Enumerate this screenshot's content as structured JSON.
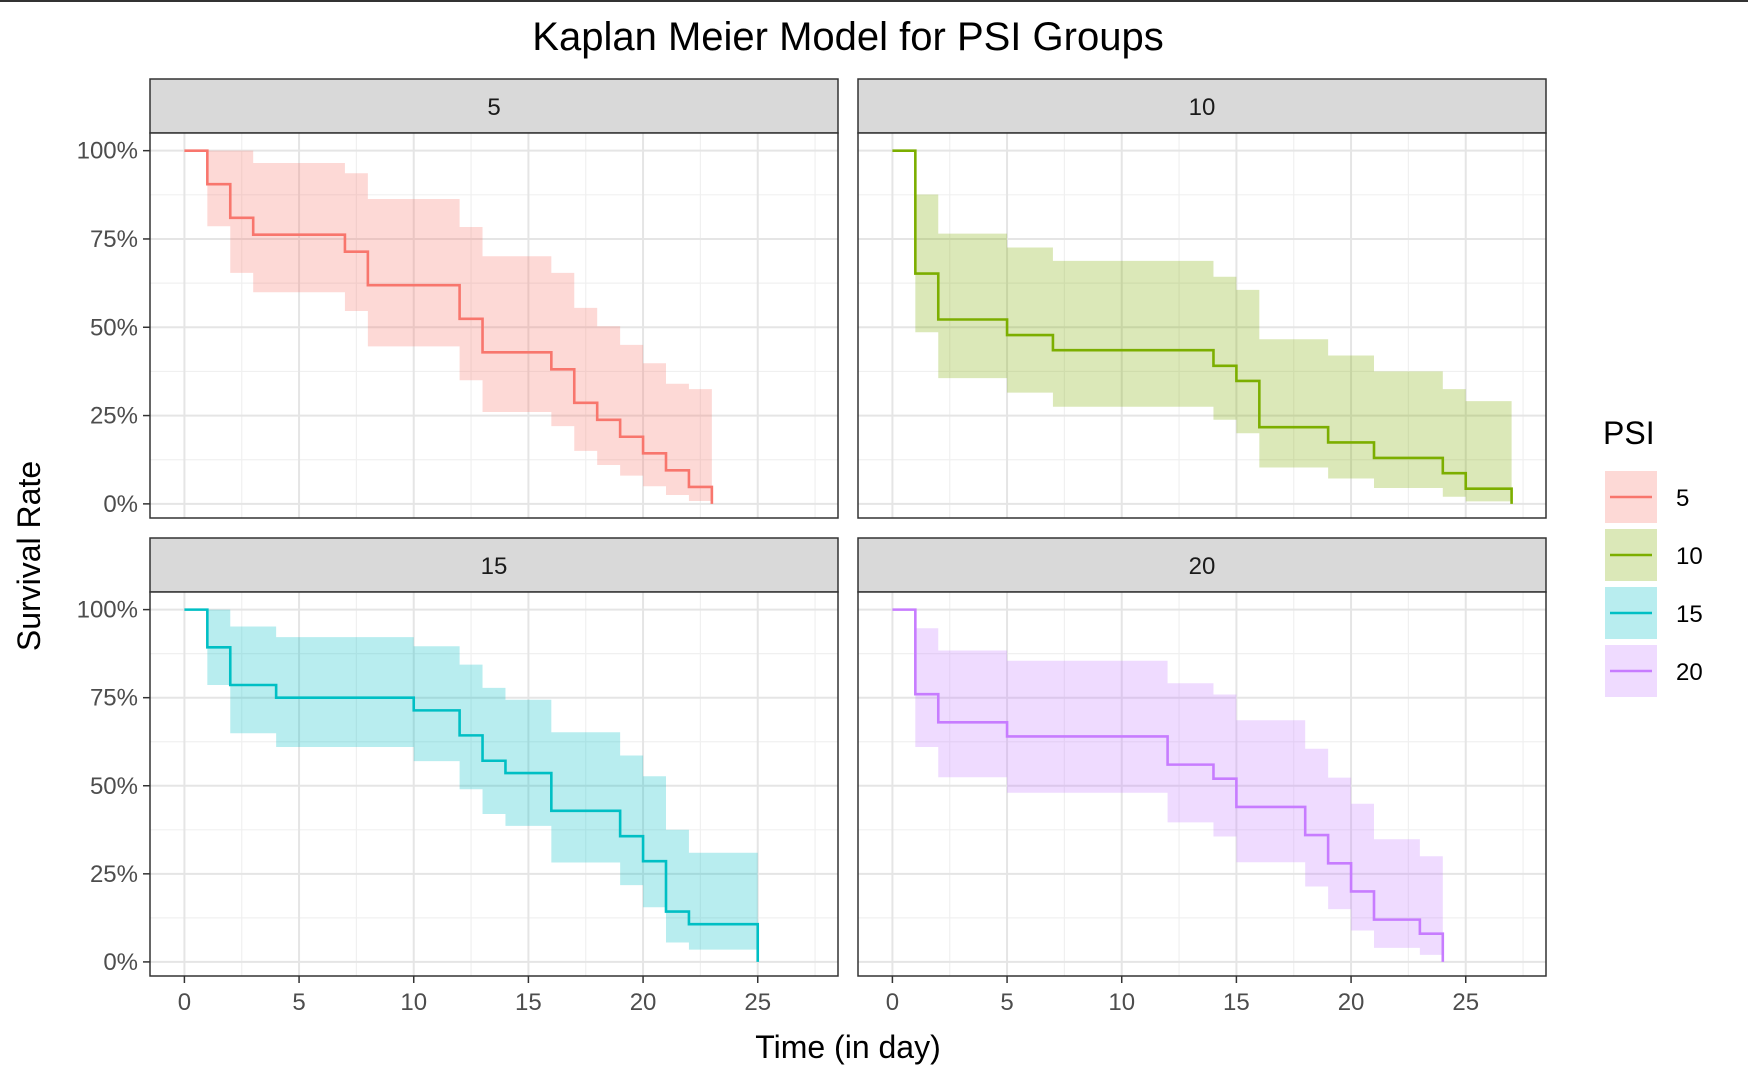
{
  "chart_data": {
    "type": "line",
    "subtype": "kaplan-meier step curves with confidence bands, faceted 2x2",
    "title": "Kaplan Meier Model for PSI Groups",
    "xlabel": "Time (in day)",
    "ylabel": "Survival Rate",
    "xlim": [
      -1.5,
      28.5
    ],
    "ylim": [
      -4,
      105
    ],
    "x_ticks": [
      0,
      5,
      10,
      15,
      20,
      25
    ],
    "x_tick_labels": [
      "0",
      "5",
      "10",
      "15",
      "20",
      "25"
    ],
    "y_ticks": [
      0,
      25,
      50,
      75,
      100
    ],
    "y_tick_labels": [
      "0%",
      "25%",
      "50%",
      "75%",
      "100%"
    ],
    "grid": true,
    "legend": {
      "title": "PSI",
      "position": "right",
      "entries": [
        "5",
        "10",
        "15",
        "20"
      ]
    },
    "colors": {
      "5": "#F8766D",
      "10": "#7CAE00",
      "15": "#00BFC4",
      "20": "#C77CFF"
    },
    "series": [
      {
        "name": "5",
        "facet_label": "5",
        "steps": [
          [
            0,
            100
          ],
          [
            1,
            90.5
          ],
          [
            2,
            81
          ],
          [
            3,
            76.2
          ],
          [
            7,
            71.4
          ],
          [
            8,
            61.9
          ],
          [
            12,
            52.4
          ],
          [
            13,
            42.9
          ],
          [
            16,
            38.1
          ],
          [
            17,
            28.6
          ],
          [
            18,
            23.8
          ],
          [
            19,
            19
          ],
          [
            20,
            14.3
          ],
          [
            21,
            9.5
          ],
          [
            22,
            4.8
          ],
          [
            23,
            0
          ]
        ],
        "lower": [
          [
            0,
            100
          ],
          [
            1,
            78.6
          ],
          [
            2,
            65.4
          ],
          [
            3,
            59.9
          ],
          [
            7,
            54.6
          ],
          [
            8,
            44.6
          ],
          [
            12,
            35
          ],
          [
            13,
            26
          ],
          [
            16,
            22
          ],
          [
            17,
            15
          ],
          [
            18,
            11
          ],
          [
            19,
            8
          ],
          [
            20,
            5
          ],
          [
            21,
            2.5
          ],
          [
            22,
            0.8
          ],
          [
            23,
            0
          ]
        ],
        "upper": [
          [
            0,
            100
          ],
          [
            1,
            100
          ],
          [
            2,
            100
          ],
          [
            3,
            96.5
          ],
          [
            7,
            93.6
          ],
          [
            8,
            86.3
          ],
          [
            12,
            78.4
          ],
          [
            13,
            70.1
          ],
          [
            16,
            65.4
          ],
          [
            17,
            55.5
          ],
          [
            18,
            50.3
          ],
          [
            19,
            45
          ],
          [
            20,
            39.8
          ],
          [
            21,
            34
          ],
          [
            22,
            32.5
          ],
          [
            23,
            0
          ]
        ]
      },
      {
        "name": "10",
        "facet_label": "10",
        "steps": [
          [
            0,
            100
          ],
          [
            1,
            65.2
          ],
          [
            2,
            52.2
          ],
          [
            5,
            47.8
          ],
          [
            7,
            43.5
          ],
          [
            14,
            39.1
          ],
          [
            15,
            34.8
          ],
          [
            16,
            21.7
          ],
          [
            19,
            17.4
          ],
          [
            21,
            13
          ],
          [
            24,
            8.7
          ],
          [
            25,
            4.3
          ],
          [
            27,
            0
          ]
        ],
        "lower": [
          [
            0,
            100
          ],
          [
            1,
            48.6
          ],
          [
            2,
            35.6
          ],
          [
            5,
            31.5
          ],
          [
            7,
            27.5
          ],
          [
            14,
            23.8
          ],
          [
            15,
            20
          ],
          [
            16,
            10.3
          ],
          [
            19,
            7.2
          ],
          [
            21,
            4.5
          ],
          [
            24,
            2
          ],
          [
            25,
            0.7
          ],
          [
            27,
            0
          ]
        ],
        "upper": [
          [
            0,
            100
          ],
          [
            1,
            87.6
          ],
          [
            2,
            76.5
          ],
          [
            5,
            72.6
          ],
          [
            7,
            68.8
          ],
          [
            14,
            64.3
          ],
          [
            15,
            60.6
          ],
          [
            16,
            46.6
          ],
          [
            19,
            42
          ],
          [
            21,
            37.5
          ],
          [
            24,
            32.5
          ],
          [
            25,
            29.1
          ],
          [
            27,
            0
          ]
        ]
      },
      {
        "name": "15",
        "facet_label": "15",
        "steps": [
          [
            0,
            100
          ],
          [
            1,
            89.3
          ],
          [
            2,
            78.6
          ],
          [
            4,
            75
          ],
          [
            10,
            71.4
          ],
          [
            12,
            64.3
          ],
          [
            13,
            57.1
          ],
          [
            14,
            53.6
          ],
          [
            16,
            42.9
          ],
          [
            19,
            35.7
          ],
          [
            20,
            28.6
          ],
          [
            21,
            14.3
          ],
          [
            22,
            10.7
          ],
          [
            25,
            0
          ]
        ],
        "lower": [
          [
            0,
            100
          ],
          [
            1,
            78.6
          ],
          [
            2,
            64.9
          ],
          [
            4,
            61
          ],
          [
            10,
            57
          ],
          [
            12,
            49
          ],
          [
            13,
            42
          ],
          [
            14,
            38.6
          ],
          [
            16,
            28.2
          ],
          [
            19,
            21.8
          ],
          [
            20,
            15.5
          ],
          [
            21,
            5.5
          ],
          [
            22,
            3.5
          ],
          [
            25,
            0
          ]
        ],
        "upper": [
          [
            0,
            100
          ],
          [
            1,
            100
          ],
          [
            2,
            95.2
          ],
          [
            4,
            92.2
          ],
          [
            10,
            89.6
          ],
          [
            12,
            84.4
          ],
          [
            13,
            77.8
          ],
          [
            14,
            74.4
          ],
          [
            16,
            65.2
          ],
          [
            19,
            58.6
          ],
          [
            20,
            52.7
          ],
          [
            21,
            37.5
          ],
          [
            22,
            31
          ],
          [
            25,
            0
          ]
        ]
      },
      {
        "name": "20",
        "facet_label": "20",
        "steps": [
          [
            0,
            100
          ],
          [
            1,
            76
          ],
          [
            2,
            68
          ],
          [
            5,
            64
          ],
          [
            12,
            56
          ],
          [
            14,
            52
          ],
          [
            15,
            44
          ],
          [
            18,
            36
          ],
          [
            19,
            28
          ],
          [
            20,
            20
          ],
          [
            21,
            12
          ],
          [
            23,
            8
          ],
          [
            24,
            0
          ]
        ],
        "lower": [
          [
            0,
            100
          ],
          [
            1,
            61
          ],
          [
            2,
            52.4
          ],
          [
            5,
            48
          ],
          [
            12,
            39.6
          ],
          [
            14,
            35.6
          ],
          [
            15,
            28.3
          ],
          [
            18,
            21.4
          ],
          [
            19,
            15
          ],
          [
            20,
            8.9
          ],
          [
            21,
            4
          ],
          [
            23,
            2
          ],
          [
            24,
            0
          ]
        ],
        "upper": [
          [
            0,
            100
          ],
          [
            1,
            94.7
          ],
          [
            2,
            88.4
          ],
          [
            5,
            85.5
          ],
          [
            12,
            79.1
          ],
          [
            14,
            75.9
          ],
          [
            15,
            68.6
          ],
          [
            18,
            60.5
          ],
          [
            19,
            52.3
          ],
          [
            20,
            44.9
          ],
          [
            21,
            34.8
          ],
          [
            23,
            30
          ],
          [
            24,
            0
          ]
        ]
      }
    ]
  }
}
